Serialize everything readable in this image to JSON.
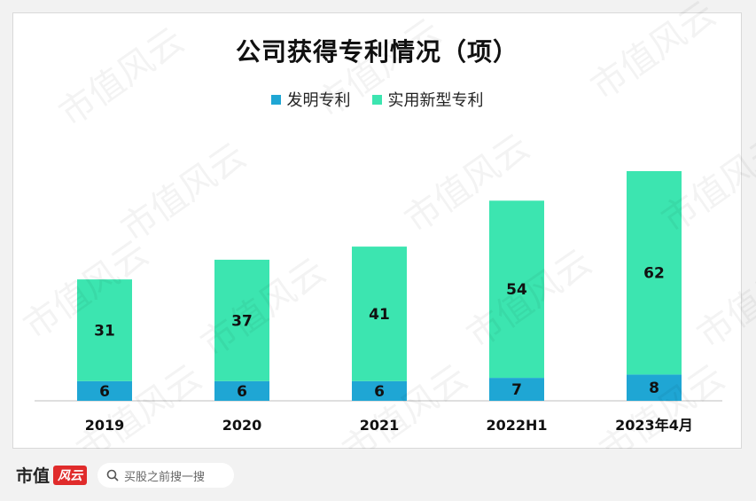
{
  "chart_data": {
    "type": "bar",
    "stacked": true,
    "title": "公司获得专利情况（项）",
    "categories": [
      "2019",
      "2020",
      "2021",
      "2022H1",
      "2023年4月"
    ],
    "series": [
      {
        "name": "发明专利",
        "values": [
          6,
          6,
          6,
          7,
          8
        ],
        "color": "#1fa6d4"
      },
      {
        "name": "实用新型专利",
        "values": [
          31,
          37,
          41,
          54,
          62
        ],
        "color": "#3ce5b0"
      }
    ],
    "xlabel": "",
    "ylabel": "",
    "ylim": [
      0,
      75
    ],
    "grid": false,
    "legend_position": "top"
  },
  "watermark_text": "市值风云",
  "footer": {
    "brand": "市值",
    "brand_badge": "风云",
    "search_placeholder": "买股之前搜一搜"
  }
}
